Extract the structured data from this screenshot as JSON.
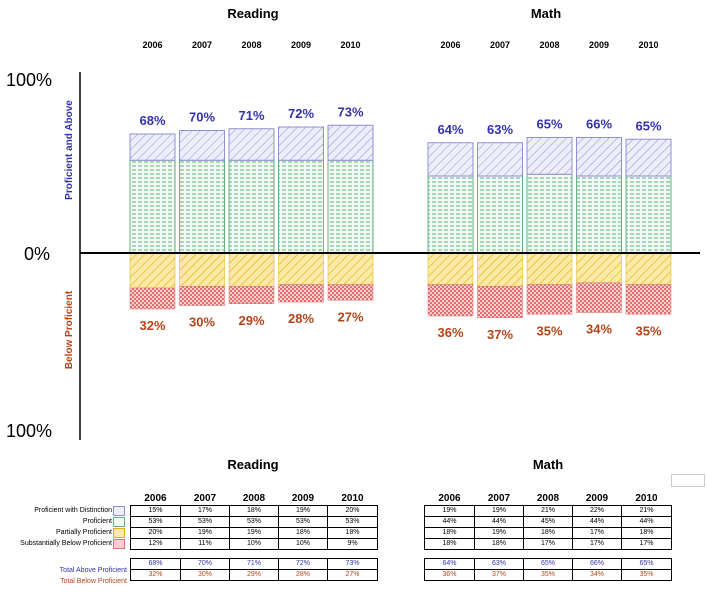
{
  "chart_data": {
    "type": "bar",
    "stacked": true,
    "diverging": true,
    "axis": {
      "top_label": "100%",
      "zero_label": "0%",
      "bottom_label": "100%",
      "above_axis_title": "Proficient and Above",
      "below_axis_title": "Below Proficient"
    },
    "groups": [
      {
        "title": "Reading",
        "years": [
          "2006",
          "2007",
          "2008",
          "2009",
          "2010"
        ],
        "proficient_with_distinction": [
          15,
          17,
          18,
          19,
          20
        ],
        "proficient": [
          53,
          53,
          53,
          53,
          53
        ],
        "partially_proficient": [
          20,
          19,
          19,
          18,
          18
        ],
        "substantially_below_proficient": [
          12,
          11,
          10,
          10,
          9
        ],
        "total_above": [
          68,
          70,
          71,
          72,
          73
        ],
        "total_below": [
          32,
          30,
          29,
          28,
          27
        ],
        "total_above_labels": [
          "68%",
          "70%",
          "71%",
          "72%",
          "73%"
        ],
        "total_below_labels": [
          "32%",
          "30%",
          "29%",
          "28%",
          "27%"
        ]
      },
      {
        "title": "Math",
        "years": [
          "2006",
          "2007",
          "2008",
          "2009",
          "2010"
        ],
        "proficient_with_distinction": [
          19,
          19,
          21,
          22,
          21
        ],
        "proficient": [
          44,
          44,
          45,
          44,
          44
        ],
        "partially_proficient": [
          18,
          19,
          18,
          17,
          18
        ],
        "substantially_below_proficient": [
          18,
          18,
          17,
          17,
          17
        ],
        "total_above": [
          64,
          63,
          65,
          66,
          65
        ],
        "total_below": [
          36,
          37,
          35,
          34,
          35
        ],
        "total_above_labels": [
          "64%",
          "63%",
          "65%",
          "66%",
          "65%"
        ],
        "total_below_labels": [
          "36%",
          "37%",
          "35%",
          "34%",
          "35%"
        ]
      }
    ],
    "legend": [
      {
        "key": "proficient_with_distinction",
        "label": "Proficient with Distinction",
        "color": "#c8c8ee"
      },
      {
        "key": "proficient",
        "label": "Proficient",
        "color": "#7fc99a"
      },
      {
        "key": "partially_proficient",
        "label": "Partially Proficient",
        "color": "#f0cc40"
      },
      {
        "key": "substantially_below_proficient",
        "label": "Substantially Below Proficient",
        "color": "#ee8888"
      }
    ],
    "totals_labels": {
      "above": "Total Above Proficient",
      "below": "Total Below Proficient"
    },
    "table_titles": [
      "Reading",
      "Math"
    ]
  },
  "colors": {
    "above_label": "#3333aa",
    "below_label": "#b5441a"
  }
}
